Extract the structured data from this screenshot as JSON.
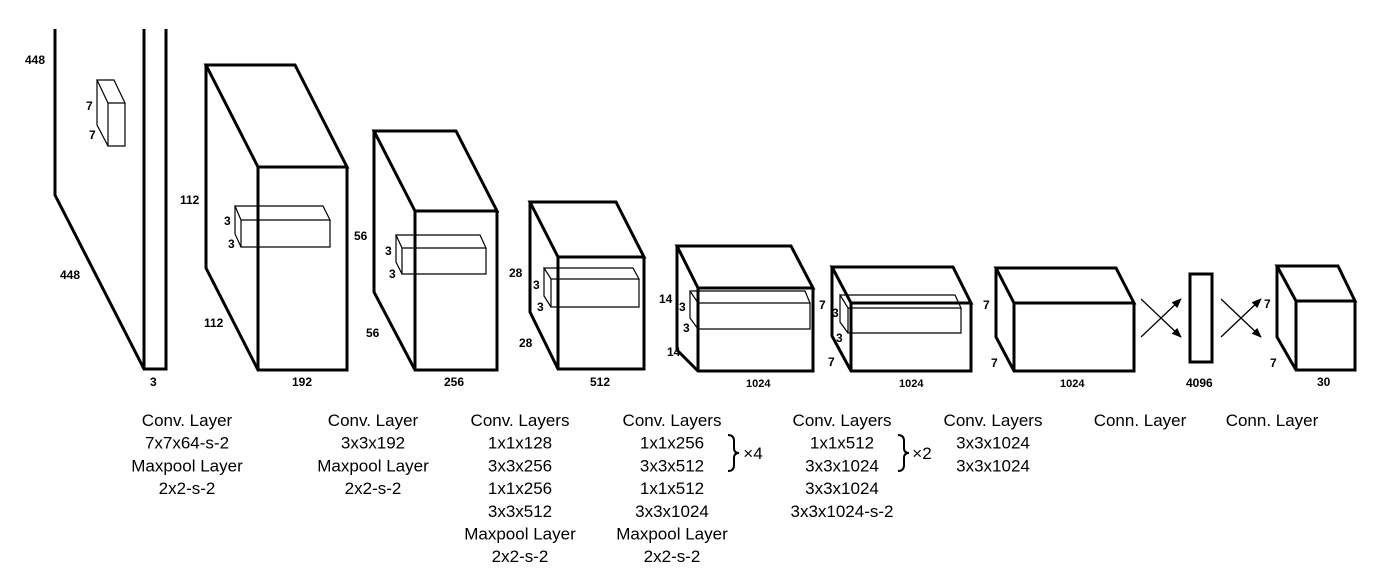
{
  "dims": {
    "input": [
      "448",
      "7",
      "7",
      "448",
      "3"
    ],
    "b1": [
      "112",
      "3",
      "3",
      "112",
      "192"
    ],
    "b2": [
      "56",
      "3",
      "3",
      "56",
      "256"
    ],
    "b3": [
      "28",
      "3",
      "3",
      "28",
      "512"
    ],
    "b4": [
      "14",
      "3",
      "3",
      "14",
      "1024"
    ],
    "b5": [
      "7",
      "3",
      "3",
      "7",
      "1024"
    ],
    "b6": [
      "7",
      "7",
      "1024"
    ],
    "fc": [
      "4096"
    ],
    "out": [
      "7",
      "7",
      "30"
    ]
  },
  "captions": [
    [
      "Conv. Layer",
      "7x7x64-s-2",
      "Maxpool Layer",
      "2x2-s-2"
    ],
    [
      "Conv. Layer",
      "3x3x192",
      "Maxpool Layer",
      "2x2-s-2"
    ],
    [
      "Conv. Layers",
      "1x1x128",
      "3x3x256",
      "1x1x256",
      "3x3x512",
      "Maxpool Layer",
      "2x2-s-2"
    ],
    [
      "Conv. Layers",
      "1x1x256",
      "3x3x512",
      "1x1x512",
      "3x3x1024",
      "Maxpool Layer",
      "2x2-s-2"
    ],
    [
      "Conv. Layers",
      "1x1x512",
      "3x3x1024",
      "3x3x1024",
      "3x3x1024-s-2"
    ],
    [
      "Conv. Layers",
      "3x3x1024",
      "3x3x1024"
    ],
    [
      "Conn. Layer"
    ],
    [
      "Conn. Layer"
    ]
  ],
  "repeats": {
    "group4": "×4",
    "group5": "×2"
  }
}
